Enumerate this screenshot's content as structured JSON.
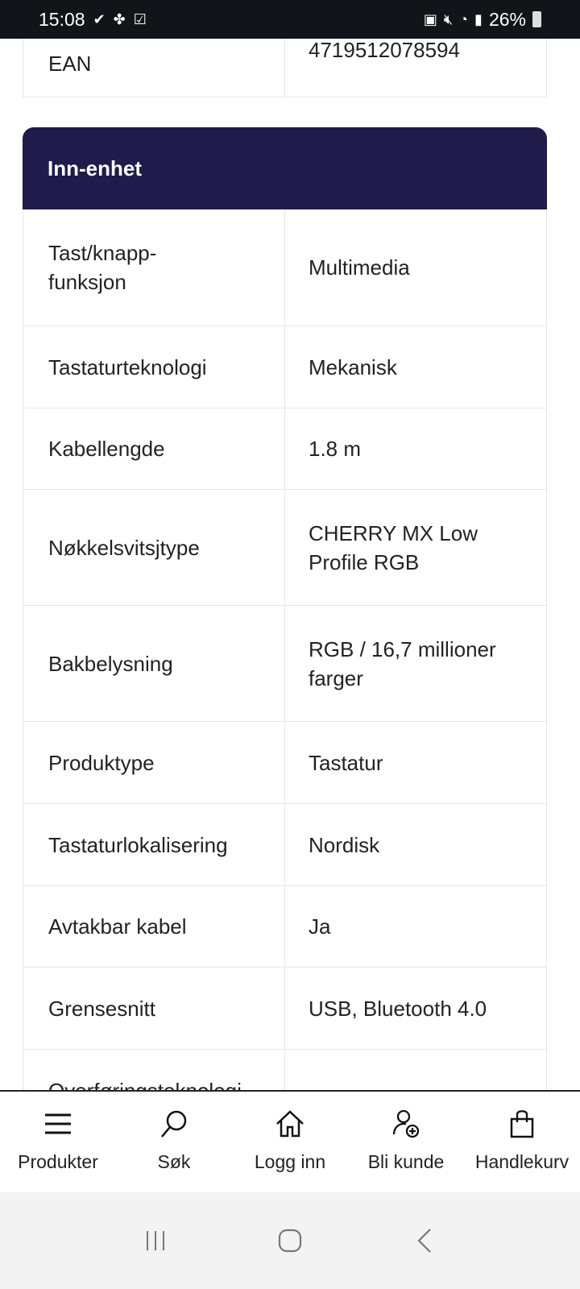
{
  "status_bar": {
    "time": "15:08",
    "battery": "26%"
  },
  "top_table": {
    "rows": [
      {
        "label": "EAN",
        "value": "4719512078594"
      }
    ]
  },
  "section": {
    "title": "Inn-enhet",
    "rows": [
      {
        "label": "Tast/knapp-funksjon",
        "value": "Multimedia",
        "h": 145
      },
      {
        "label": "Tastaturteknologi",
        "value": "Mekanisk",
        "h": 102
      },
      {
        "label": "Kabellengde",
        "value": "1.8 m",
        "h": 101
      },
      {
        "label": "Nøkkelsvitsjtype",
        "value": "CHERRY MX Low Profile RGB",
        "h": 144
      },
      {
        "label": "Bakbelysning",
        "value": "RGB / 16,7 millioner farger",
        "h": 144
      },
      {
        "label": "Produktype",
        "value": "Tastatur",
        "h": 102
      },
      {
        "label": "Tastaturlokalisering",
        "value": "Nordisk",
        "h": 102
      },
      {
        "label": "Avtakbar kabel",
        "value": "Ja",
        "h": 101
      },
      {
        "label": "Grensesnitt",
        "value": "USB, Bluetooth 4.0",
        "h": 102
      },
      {
        "label": "Overføringsteknologi",
        "value": "",
        "h": 102
      }
    ]
  },
  "bottom_nav": [
    {
      "label": "Produkter",
      "icon": "menu-icon"
    },
    {
      "label": "Søk",
      "icon": "search-icon"
    },
    {
      "label": "Logg inn",
      "icon": "home-icon"
    },
    {
      "label": "Bli kunde",
      "icon": "add-user-icon"
    },
    {
      "label": "Handlekurv",
      "icon": "shopping-bag-icon"
    }
  ],
  "colors": {
    "section_header": "#1f1b4a"
  }
}
